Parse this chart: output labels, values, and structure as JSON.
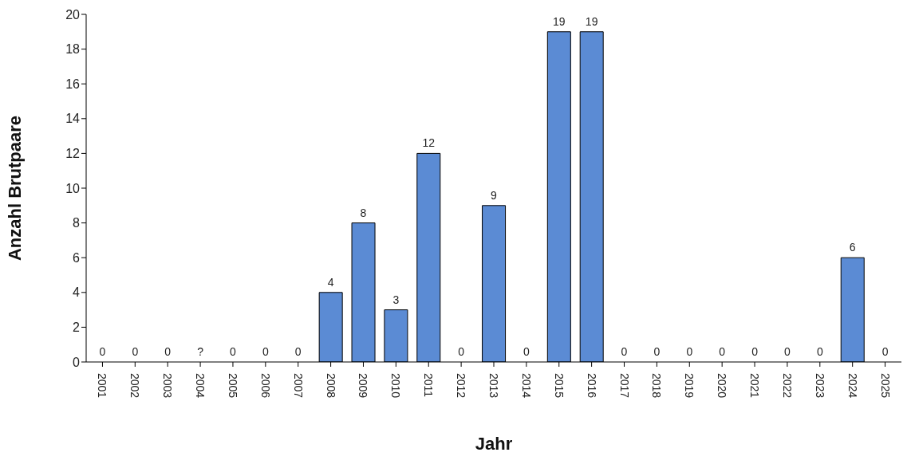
{
  "chart_data": {
    "type": "bar",
    "xlabel": "Jahr",
    "ylabel": "Anzahl Brutpaare",
    "categories": [
      "2001",
      "2002",
      "2003",
      "2004",
      "2005",
      "2006",
      "2007",
      "2008",
      "2009",
      "2010",
      "2011",
      "2012",
      "2013",
      "2014",
      "2015",
      "2016",
      "2017",
      "2018",
      "2019",
      "2020",
      "2021",
      "2022",
      "2023",
      "2024",
      "2025"
    ],
    "values": [
      0,
      0,
      0,
      null,
      0,
      0,
      0,
      4,
      8,
      3,
      12,
      0,
      9,
      0,
      19,
      19,
      0,
      0,
      0,
      0,
      0,
      0,
      0,
      6,
      0
    ],
    "value_labels": [
      "0",
      "0",
      "0",
      "?",
      "0",
      "0",
      "0",
      "4",
      "8",
      "3",
      "12",
      "0",
      "9",
      "0",
      "19",
      "19",
      "0",
      "0",
      "0",
      "0",
      "0",
      "0",
      "0",
      "6",
      "0"
    ],
    "color": "#5b8bd4",
    "ylim": [
      0,
      20
    ],
    "yticks": [
      0,
      2,
      4,
      6,
      8,
      10,
      12,
      14,
      16,
      18,
      20
    ],
    "grid": false,
    "legend": false
  }
}
